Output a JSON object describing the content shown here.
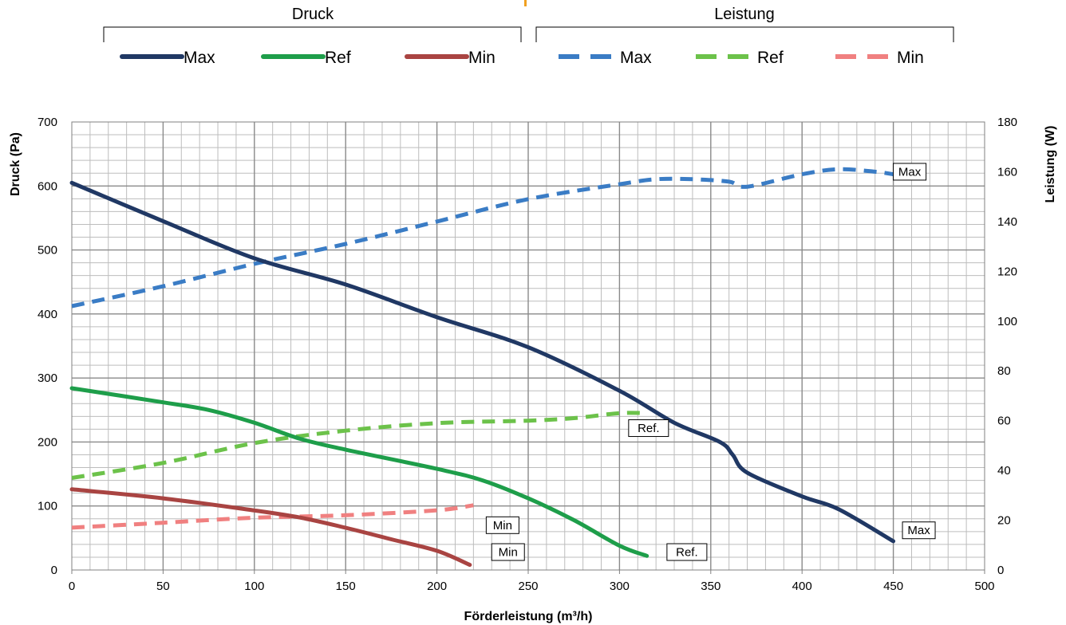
{
  "chart_data": {
    "type": "line",
    "title": "",
    "xlabel": "Förderleistung (m³/h)",
    "ylabel": "Druck (Pa)",
    "y2label": "Leistung (W)",
    "xlim": [
      0,
      500
    ],
    "ylim": [
      0,
      700
    ],
    "y2lim": [
      0,
      180
    ],
    "x_ticks": [
      "0",
      "50",
      "100",
      "150",
      "200",
      "250",
      "300",
      "350",
      "400",
      "450",
      "500"
    ],
    "y_ticks": [
      "0",
      "100",
      "200",
      "300",
      "400",
      "500",
      "600",
      "700"
    ],
    "y2_ticks": [
      "0",
      "20",
      "40",
      "60",
      "80",
      "100",
      "120",
      "140",
      "160",
      "180"
    ],
    "grid": true,
    "legend_position": "top",
    "legend_groups": [
      {
        "title": "Druck",
        "entries": [
          "Max",
          "Ref",
          "Min"
        ]
      },
      {
        "title": "Leistung",
        "entries": [
          "Max",
          "Ref",
          "Min"
        ]
      }
    ],
    "colors": {
      "max": "#203864",
      "ref": "#1e9e4a",
      "min": "#a94442",
      "max_power": "#3a7cc5",
      "ref_power": "#6cc24a",
      "min_power": "#f08080",
      "accent": "#f0a020"
    },
    "series": [
      {
        "name": "Max",
        "group": "Druck",
        "axis": "left",
        "style": "solid",
        "x": [
          0,
          50,
          100,
          150,
          200,
          250,
          300,
          330,
          355,
          362,
          370,
          400,
          420,
          450
        ],
        "y": [
          605,
          545,
          487,
          446,
          395,
          348,
          280,
          230,
          200,
          180,
          152,
          115,
          95,
          45
        ]
      },
      {
        "name": "Ref",
        "group": "Druck",
        "axis": "left",
        "style": "solid",
        "x": [
          0,
          50,
          75,
          100,
          125,
          150,
          200,
          225,
          250,
          275,
          300,
          315
        ],
        "y": [
          284,
          262,
          250,
          230,
          205,
          188,
          158,
          140,
          112,
          78,
          38,
          22
        ]
      },
      {
        "name": "Min",
        "group": "Druck",
        "axis": "left",
        "style": "solid",
        "x": [
          0,
          50,
          100,
          125,
          150,
          175,
          200,
          218
        ],
        "y": [
          126,
          112,
          93,
          82,
          66,
          48,
          30,
          8
        ]
      },
      {
        "name": "Max",
        "group": "Leistung",
        "axis": "right",
        "style": "dashed",
        "x": [
          0,
          50,
          100,
          150,
          200,
          250,
          300,
          320,
          340,
          360,
          370,
          400,
          420,
          440,
          450
        ],
        "y": [
          106,
          114,
          123,
          131,
          140,
          149,
          155,
          157,
          157,
          156,
          154,
          159,
          161,
          160,
          159
        ]
      },
      {
        "name": "Ref",
        "group": "Leistung",
        "axis": "right",
        "style": "dashed",
        "x": [
          0,
          50,
          100,
          150,
          200,
          250,
          275,
          300,
          315
        ],
        "y": [
          37,
          43,
          51,
          56,
          59,
          60,
          61,
          63,
          63
        ]
      },
      {
        "name": "Min",
        "group": "Leistung",
        "axis": "right",
        "style": "dashed",
        "x": [
          0,
          50,
          100,
          150,
          200,
          220
        ],
        "y": [
          17,
          19,
          21,
          22,
          24,
          26
        ]
      }
    ],
    "annotations": [
      {
        "text": "Max",
        "x": 450,
        "y": 160,
        "axis": "right"
      },
      {
        "text": "Ref.",
        "x": 305,
        "y": 57,
        "axis": "right"
      },
      {
        "text": "Min",
        "x": 227,
        "y": 18,
        "axis": "right"
      },
      {
        "text": "Max",
        "x": 455,
        "y": 62,
        "axis": "left"
      },
      {
        "text": "Ref.",
        "x": 326,
        "y": 28,
        "axis": "left"
      },
      {
        "text": "Min",
        "x": 230,
        "y": 28,
        "axis": "left"
      }
    ]
  }
}
